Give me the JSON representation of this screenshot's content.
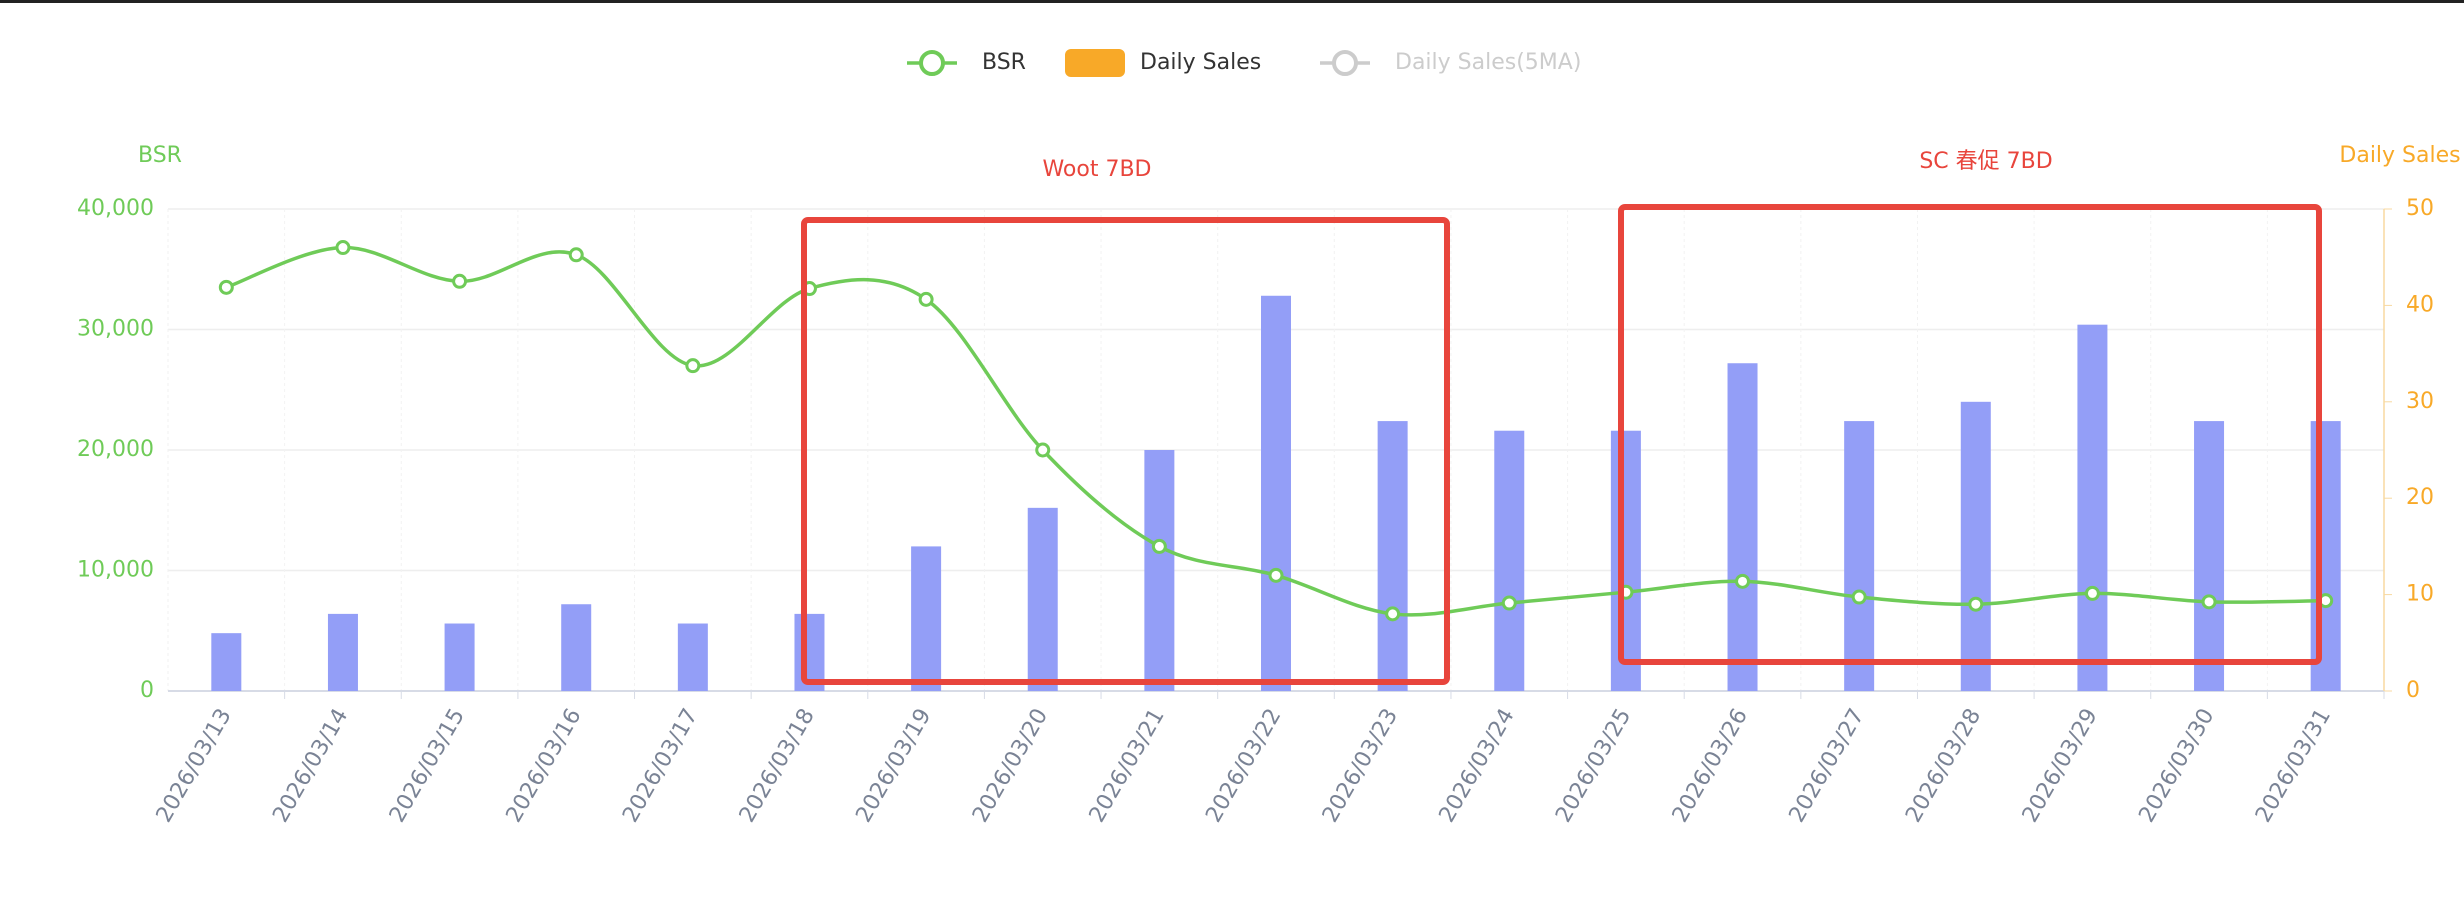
{
  "chart_data": {
    "type": "bar-line",
    "categories": [
      "2026/03/13",
      "2026/03/14",
      "2026/03/15",
      "2026/03/16",
      "2026/03/17",
      "2026/03/18",
      "2026/03/19",
      "2026/03/20",
      "2026/03/21",
      "2026/03/22",
      "2026/03/23",
      "2026/03/24",
      "2026/03/25",
      "2026/03/26",
      "2026/03/27",
      "2026/03/28",
      "2026/03/29",
      "2026/03/30",
      "2026/03/31"
    ],
    "series": [
      {
        "name": "BSR",
        "type": "line",
        "color": "#6fcb58",
        "values": [
          33500,
          36800,
          34000,
          36200,
          27000,
          33400,
          32500,
          20000,
          12000,
          9600,
          6400,
          7300,
          8200,
          9100,
          7800,
          7200,
          8100,
          7400,
          7500
        ]
      },
      {
        "name": "Daily Sales",
        "type": "bar",
        "axis": "y2",
        "color": "#f8a928",
        "bar_color": "#939ef7",
        "values": [
          6,
          8,
          7,
          9,
          7,
          8,
          15,
          19,
          25,
          41,
          28,
          27,
          27,
          34,
          28,
          30,
          38,
          28,
          28
        ]
      },
      {
        "name": "Daily Sales(5MA)",
        "type": "line",
        "color": "#cccccc",
        "hidden": true
      }
    ],
    "ylabel": "BSR",
    "y2label": "Daily Sales",
    "ylim": [
      0,
      40000
    ],
    "yticks": [
      0,
      {
        "value": 10000,
        "label": "10,000"
      },
      {
        "value": 20000,
        "label": "20,000"
      },
      {
        "value": 30000,
        "label": "30,000"
      },
      {
        "value": 40000,
        "label": "40,000"
      }
    ],
    "y2lim": [
      0,
      50
    ],
    "y2ticks": [
      0,
      10,
      20,
      30,
      40,
      50
    ],
    "annotations": [
      "Woot 7BD",
      "SC 春促 7BD"
    ],
    "grid": true,
    "legend": "top"
  }
}
